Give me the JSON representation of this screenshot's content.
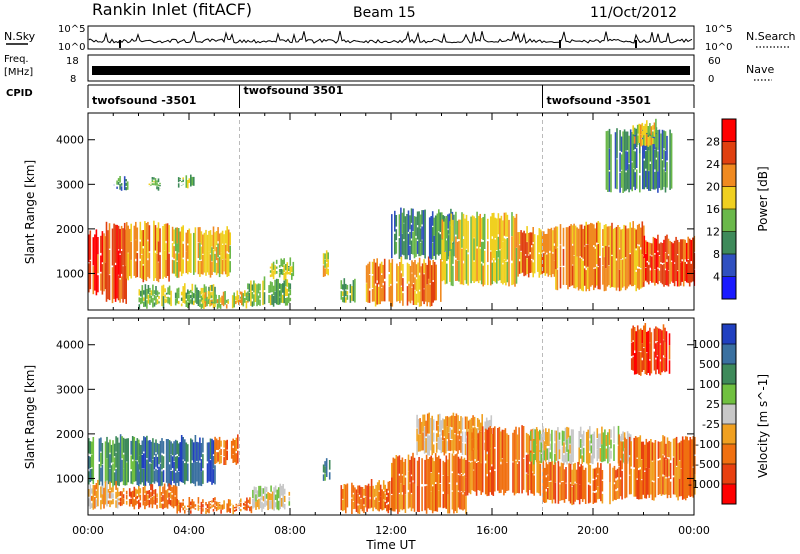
{
  "header": {
    "station": "Rankin Inlet (fitACF)",
    "beam": "Beam 15",
    "date": "11/Oct/2012"
  },
  "noise_panel": {
    "left_label": "N.Sky",
    "right_label": "N.Search",
    "tick_top": "10^5",
    "tick_bottom": "10^0"
  },
  "freq_panel": {
    "left_label_top": "Freq.",
    "left_label_bottom": "[MHz]",
    "left_tick_top": "18",
    "left_tick_bottom": "8",
    "right_label": "Nave",
    "right_tick_top": "60",
    "right_tick_bottom": "0"
  },
  "cpid_panel": {
    "label": "CPID",
    "segments": [
      {
        "start_hour": 0,
        "label": "twofsound -3501"
      },
      {
        "start_hour": 6,
        "label": "twofsound 3501"
      },
      {
        "start_hour": 18,
        "label": "twofsound -3501"
      }
    ]
  },
  "chart_data": [
    {
      "type": "heatmap",
      "panel": "power",
      "ylabel": "Slant Range [km]",
      "xlim": [
        0,
        24
      ],
      "ylim": [
        180,
        4600
      ],
      "yticks": [
        1000,
        2000,
        3000,
        4000
      ],
      "colorbar": {
        "label": "Power [dB]",
        "ticks": [
          "4",
          "8",
          "12",
          "16",
          "20",
          "24",
          "28"
        ],
        "colors": [
          "#1a1aff",
          "#3050c0",
          "#3e8a5a",
          "#6ab84a",
          "#f0d020",
          "#f08a20",
          "#e04010",
          "#ff0000"
        ]
      },
      "bands": [
        {
          "t0": 0.0,
          "t1": 0.7,
          "r0": 500,
          "r1": 1900,
          "level": 6
        },
        {
          "t0": 0.7,
          "t1": 1.5,
          "r0": 300,
          "r1": 2100,
          "level": 6
        },
        {
          "t0": 1.5,
          "t1": 3.2,
          "r0": 800,
          "r1": 2100,
          "level": 5
        },
        {
          "t0": 3.2,
          "t1": 5.6,
          "r0": 900,
          "r1": 2000,
          "level": 4
        },
        {
          "t0": 1.0,
          "t1": 1.6,
          "r0": 2850,
          "r1": 3100,
          "level": 2
        },
        {
          "t0": 2.4,
          "t1": 3.0,
          "r0": 2850,
          "r1": 3100,
          "level": 3
        },
        {
          "t0": 3.5,
          "t1": 4.2,
          "r0": 2900,
          "r1": 3150,
          "level": 3
        },
        {
          "t0": 2.0,
          "t1": 5.0,
          "r0": 200,
          "r1": 700,
          "level": 3
        },
        {
          "t0": 4.5,
          "t1": 6.3,
          "r0": 200,
          "r1": 550,
          "level": 4
        },
        {
          "t0": 6.3,
          "t1": 8.0,
          "r0": 250,
          "r1": 850,
          "level": 3
        },
        {
          "t0": 7.2,
          "t1": 8.2,
          "r0": 850,
          "r1": 1300,
          "level": 3
        },
        {
          "t0": 9.3,
          "t1": 9.6,
          "r0": 900,
          "r1": 1500,
          "level": 4
        },
        {
          "t0": 10.0,
          "t1": 10.6,
          "r0": 300,
          "r1": 800,
          "level": 3
        },
        {
          "t0": 11.0,
          "t1": 14.0,
          "r0": 250,
          "r1": 1300,
          "level": 5
        },
        {
          "t0": 12.0,
          "t1": 14.5,
          "r0": 1300,
          "r1": 2400,
          "level": 2
        },
        {
          "t0": 14.0,
          "t1": 17.0,
          "r0": 700,
          "r1": 2300,
          "level": 4
        },
        {
          "t0": 17.0,
          "t1": 18.5,
          "r0": 900,
          "r1": 2000,
          "level": 5
        },
        {
          "t0": 18.5,
          "t1": 22.0,
          "r0": 600,
          "r1": 2100,
          "level": 5
        },
        {
          "t0": 22.0,
          "t1": 24.0,
          "r0": 700,
          "r1": 1800,
          "level": 6
        },
        {
          "t0": 20.5,
          "t1": 23.2,
          "r0": 2800,
          "r1": 4200,
          "level": 2
        },
        {
          "t0": 21.5,
          "t1": 22.5,
          "r0": 3800,
          "r1": 4400,
          "level": 4
        }
      ]
    },
    {
      "type": "heatmap",
      "panel": "velocity",
      "ylabel": "Slant Range [km]",
      "xlabel": "Time UT",
      "xlim": [
        0,
        24
      ],
      "ylim": [
        180,
        4600
      ],
      "yticks": [
        1000,
        2000,
        3000,
        4000
      ],
      "xticks": [
        "00:00",
        "04:00",
        "08:00",
        "12:00",
        "16:00",
        "20:00",
        "00:00"
      ],
      "colorbar": {
        "label": "Velocity [m s^-1]",
        "ticks": [
          "1000",
          "500",
          "100",
          "25",
          "-25",
          "-100",
          "-500",
          "-1000"
        ],
        "colors": [
          "#2040c0",
          "#3a70a0",
          "#3e8a5a",
          "#70c040",
          "#c8c8c8",
          "#f0a020",
          "#f07010",
          "#e84010",
          "#ff0000"
        ]
      },
      "bands": [
        {
          "t0": 0.0,
          "t1": 2.0,
          "r0": 800,
          "r1": 1900,
          "level": 2
        },
        {
          "t0": 2.0,
          "t1": 5.0,
          "r0": 800,
          "r1": 1900,
          "level": 1
        },
        {
          "t0": 0.0,
          "t1": 1.2,
          "r0": 300,
          "r1": 900,
          "level": 5
        },
        {
          "t0": 1.2,
          "t1": 3.5,
          "r0": 300,
          "r1": 800,
          "level": 6
        },
        {
          "t0": 5.0,
          "t1": 6.0,
          "r0": 1300,
          "r1": 1900,
          "level": 6
        },
        {
          "t0": 3.5,
          "t1": 6.5,
          "r0": 200,
          "r1": 500,
          "level": 6
        },
        {
          "t0": 6.5,
          "t1": 8.0,
          "r0": 250,
          "r1": 800,
          "level": 4
        },
        {
          "t0": 9.3,
          "t1": 9.6,
          "r0": 900,
          "r1": 1400,
          "level": 2
        },
        {
          "t0": 10.0,
          "t1": 12.0,
          "r0": 200,
          "r1": 900,
          "level": 6
        },
        {
          "t0": 12.0,
          "t1": 15.0,
          "r0": 200,
          "r1": 1500,
          "level": 6
        },
        {
          "t0": 13.0,
          "t1": 16.0,
          "r0": 1500,
          "r1": 2400,
          "level": 5
        },
        {
          "t0": 15.0,
          "t1": 18.0,
          "r0": 600,
          "r1": 2100,
          "level": 6
        },
        {
          "t0": 17.5,
          "t1": 21.5,
          "r0": 1300,
          "r1": 2100,
          "level": 4
        },
        {
          "t0": 18.0,
          "t1": 21.0,
          "r0": 400,
          "r1": 1300,
          "level": 6
        },
        {
          "t0": 21.0,
          "t1": 24.0,
          "r0": 500,
          "r1": 1900,
          "level": 6
        },
        {
          "t0": 21.5,
          "t1": 23.0,
          "r0": 3300,
          "r1": 4400,
          "level": 7
        }
      ]
    }
  ]
}
